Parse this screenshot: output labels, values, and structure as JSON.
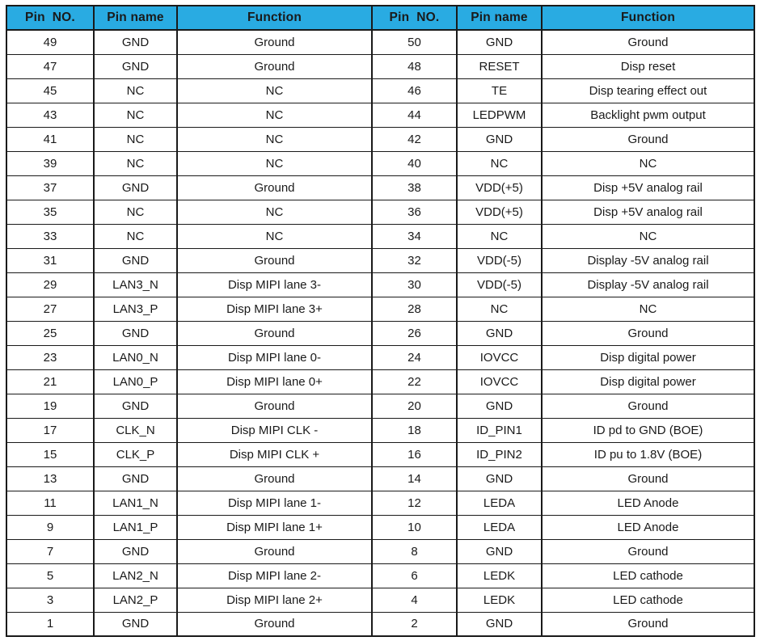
{
  "page": {
    "background": "#ffffff"
  },
  "table": {
    "header_bg": "#29ABE2",
    "border_color": "#1a1a1a",
    "text_color": "#1a1a1a",
    "headers": [
      "Pin  NO.",
      "Pin name",
      "Function",
      "Pin  NO.",
      "Pin name",
      "Function"
    ],
    "rows": [
      [
        "49",
        "GND",
        "Ground",
        "50",
        "GND",
        "Ground"
      ],
      [
        "47",
        "GND",
        "Ground",
        "48",
        "RESET",
        "Disp reset"
      ],
      [
        "45",
        "NC",
        "NC",
        "46",
        "TE",
        "Disp tearing effect out"
      ],
      [
        "43",
        "NC",
        "NC",
        "44",
        "LEDPWM",
        "Backlight pwm output"
      ],
      [
        "41",
        "NC",
        "NC",
        "42",
        "GND",
        "Ground"
      ],
      [
        "39",
        "NC",
        "NC",
        "40",
        "NC",
        "NC"
      ],
      [
        "37",
        "GND",
        "Ground",
        "38",
        "VDD(+5)",
        "Disp +5V analog rail"
      ],
      [
        "35",
        "NC",
        "NC",
        "36",
        "VDD(+5)",
        "Disp +5V analog rail"
      ],
      [
        "33",
        "NC",
        "NC",
        "34",
        "NC",
        "NC"
      ],
      [
        "31",
        "GND",
        "Ground",
        "32",
        "VDD(-5)",
        "Display -5V analog rail"
      ],
      [
        "29",
        "LAN3_N",
        "Disp MIPI lane 3-",
        "30",
        "VDD(-5)",
        "Display -5V analog rail"
      ],
      [
        "27",
        "LAN3_P",
        "Disp MIPI lane 3+",
        "28",
        "NC",
        "NC"
      ],
      [
        "25",
        "GND",
        "Ground",
        "26",
        "GND",
        "Ground"
      ],
      [
        "23",
        "LAN0_N",
        "Disp MIPI lane 0-",
        "24",
        "IOVCC",
        "Disp digital power"
      ],
      [
        "21",
        "LAN0_P",
        "Disp MIPI lane 0+",
        "22",
        "IOVCC",
        "Disp digital power"
      ],
      [
        "19",
        "GND",
        "Ground",
        "20",
        "GND",
        "Ground"
      ],
      [
        "17",
        "CLK_N",
        "Disp MIPI CLK -",
        "18",
        "ID_PIN1",
        "ID pd to GND (BOE)"
      ],
      [
        "15",
        "CLK_P",
        "Disp MIPI CLK +",
        "16",
        "ID_PIN2",
        "ID pu to 1.8V (BOE)"
      ],
      [
        "13",
        "GND",
        "Ground",
        "14",
        "GND",
        "Ground"
      ],
      [
        "11",
        "LAN1_N",
        "Disp MIPI lane 1-",
        "12",
        "LEDA",
        "LED Anode"
      ],
      [
        "9",
        "LAN1_P",
        "Disp MIPI lane 1+",
        "10",
        "LEDA",
        "LED Anode"
      ],
      [
        "7",
        "GND",
        "Ground",
        "8",
        "GND",
        "Ground"
      ],
      [
        "5",
        "LAN2_N",
        "Disp MIPI lane 2-",
        "6",
        "LEDK",
        "LED cathode"
      ],
      [
        "3",
        "LAN2_P",
        "Disp MIPI lane 2+",
        "4",
        "LEDK",
        "LED cathode"
      ],
      [
        "1",
        "GND",
        "Ground",
        "2",
        "GND",
        "Ground"
      ]
    ]
  }
}
